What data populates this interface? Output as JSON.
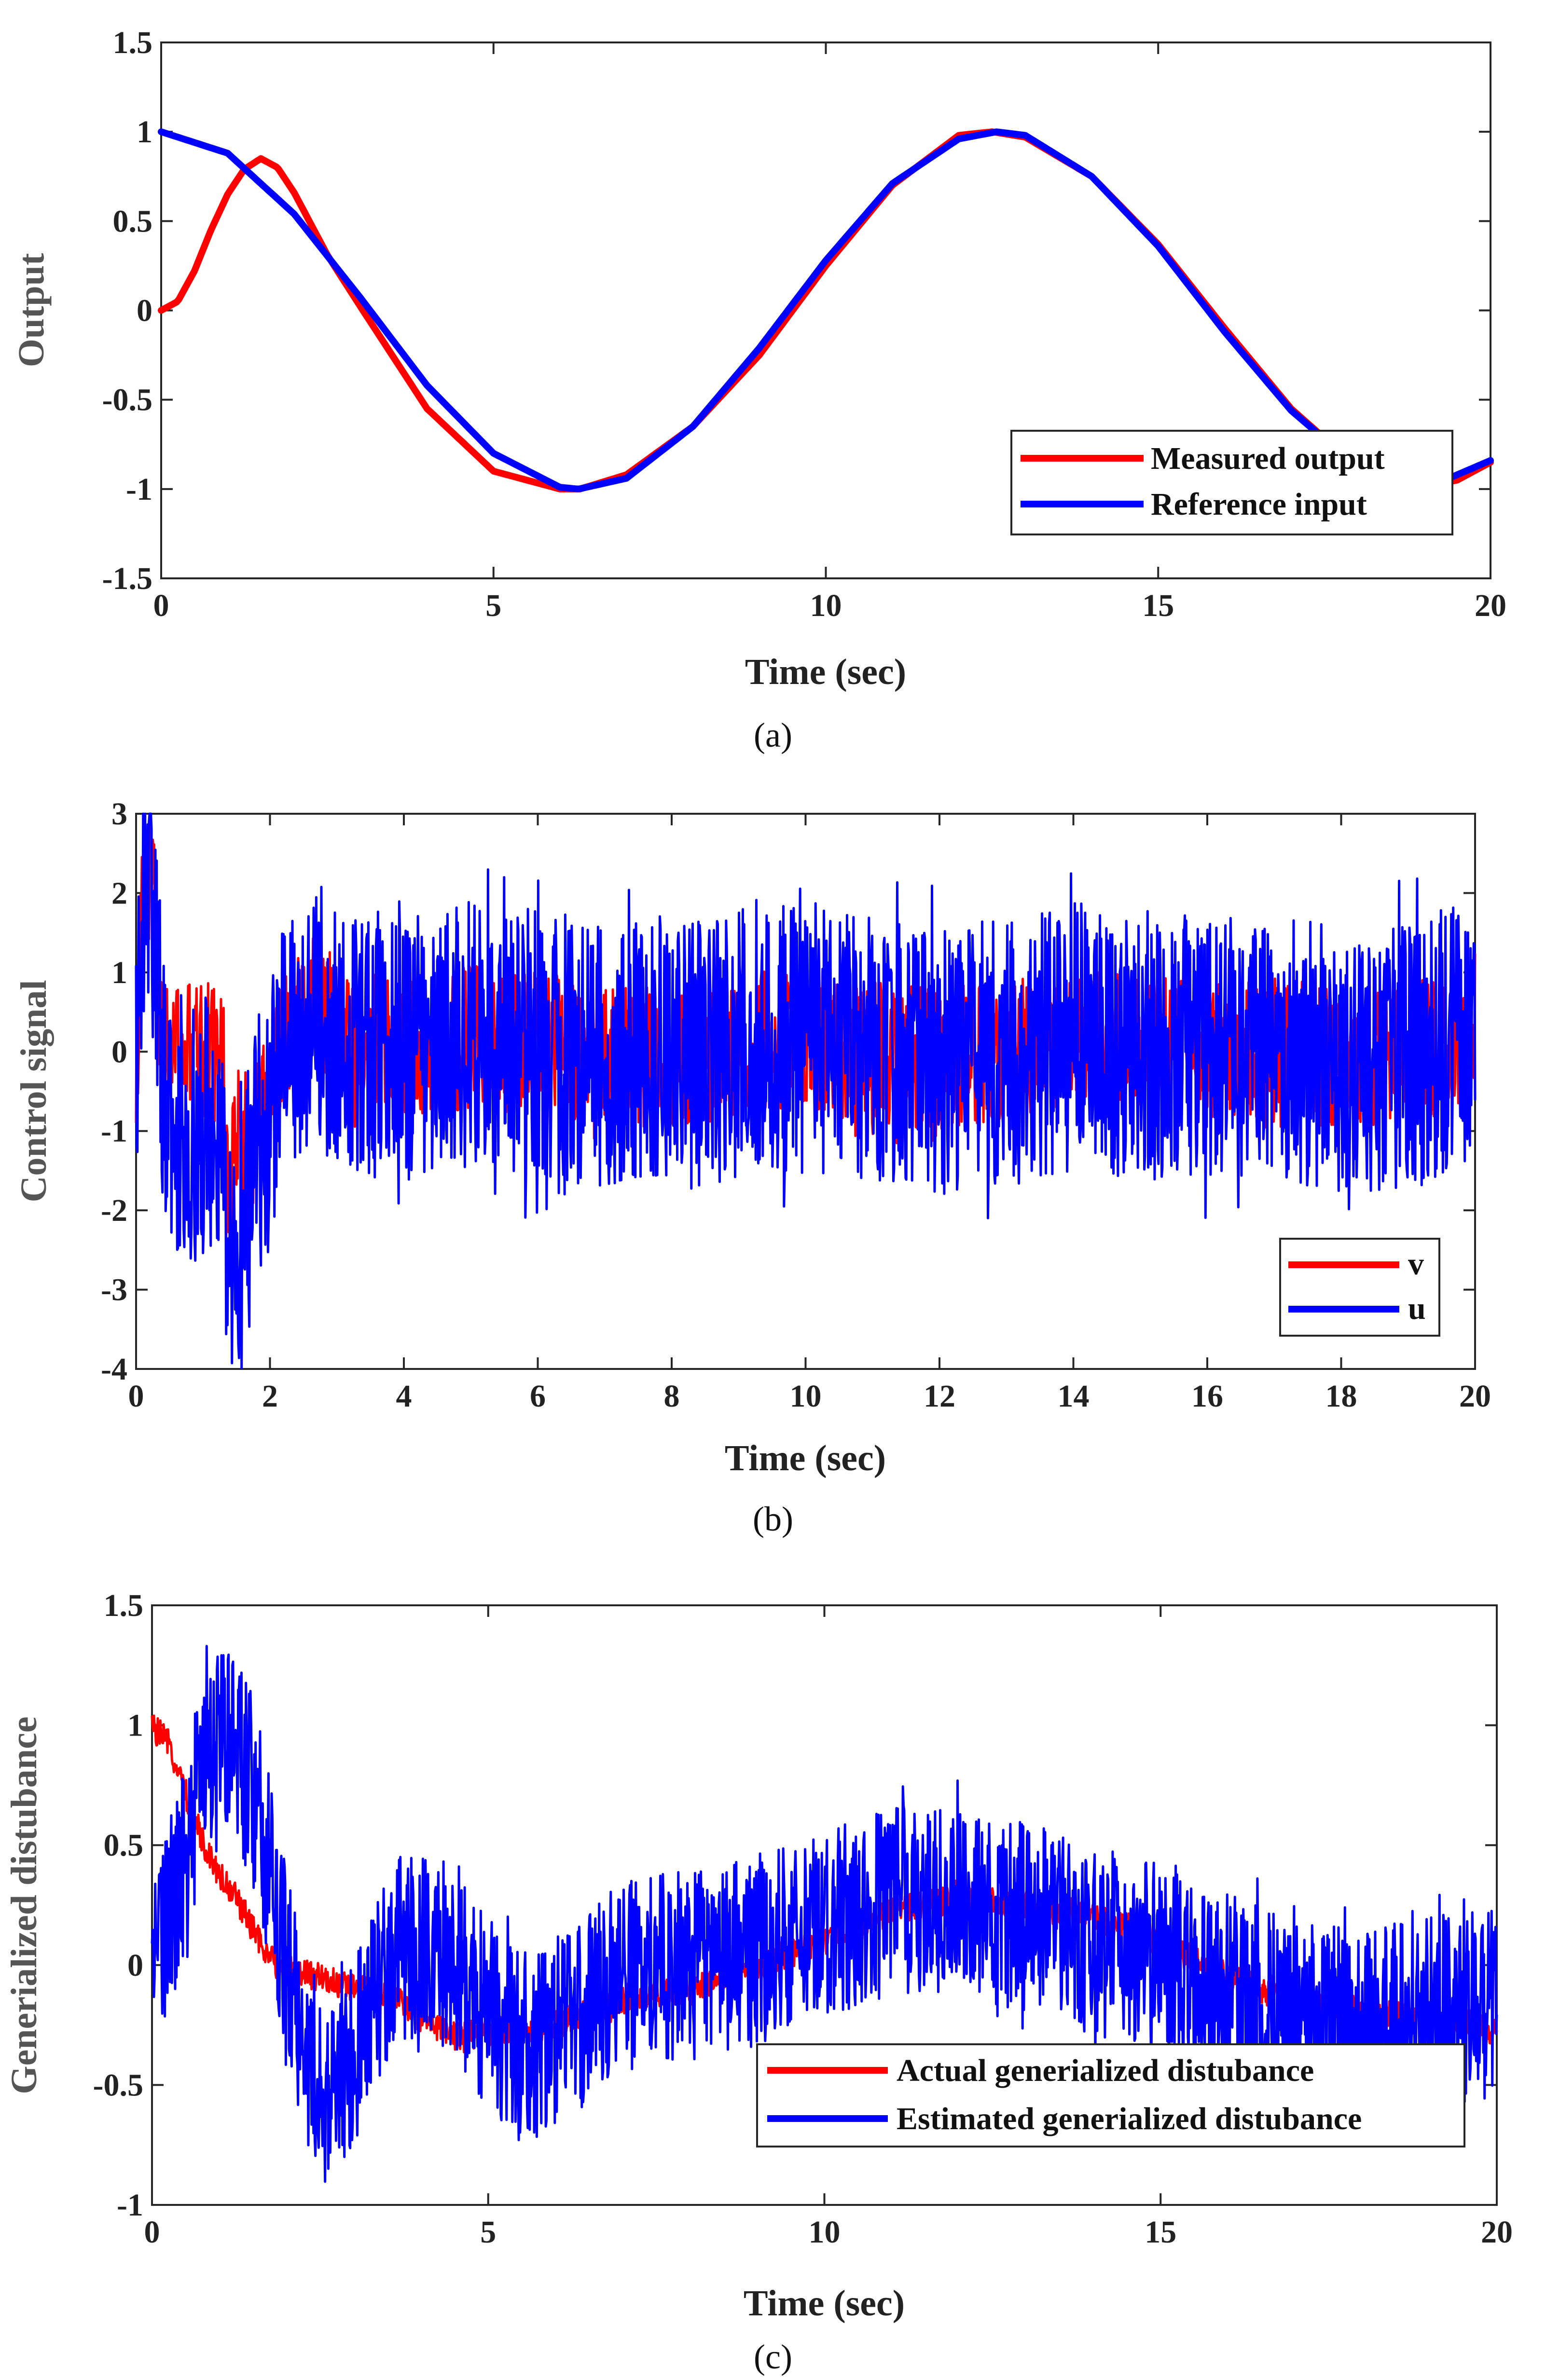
{
  "chart_data": [
    {
      "type": "line",
      "caption": "(a)",
      "xlabel": "Time (sec)",
      "ylabel": "Output",
      "xlim": [
        0,
        20
      ],
      "ylim": [
        -1.5,
        1.5
      ],
      "xticks": [
        "0",
        "5",
        "10",
        "15",
        "20"
      ],
      "yticks": [
        "-1.5",
        "-1",
        "-0.5",
        "0",
        "0.5",
        "1",
        "1.5"
      ],
      "legend_position": "bottom-right",
      "series": [
        {
          "name": "Measured output",
          "color": "#ff0000",
          "x": [
            0,
            0.25,
            0.5,
            0.75,
            1.0,
            1.25,
            1.5,
            1.75,
            2.0,
            2.5,
            3,
            4,
            5,
            6,
            6.3,
            7,
            8,
            9,
            10,
            11,
            12,
            12.5,
            13,
            14,
            15,
            16,
            17,
            18,
            19,
            19.5,
            20
          ],
          "y": [
            0,
            0.05,
            0.22,
            0.45,
            0.65,
            0.79,
            0.85,
            0.8,
            0.66,
            0.31,
            0.02,
            -0.55,
            -0.9,
            -1.0,
            -1.0,
            -0.92,
            -0.65,
            -0.25,
            0.25,
            0.7,
            0.98,
            1.0,
            0.97,
            0.75,
            0.37,
            -0.1,
            -0.55,
            -0.88,
            -0.99,
            -0.95,
            -0.85
          ]
        },
        {
          "name": "Reference input",
          "color": "#0000ff",
          "x": [
            0,
            1,
            2,
            3,
            4,
            5,
            6,
            6.28,
            7,
            8,
            9,
            10,
            11,
            12,
            12.57,
            13,
            14,
            15,
            16,
            17,
            18,
            19,
            20
          ],
          "y": [
            1.0,
            0.88,
            0.54,
            0.07,
            -0.42,
            -0.8,
            -0.99,
            -1.0,
            -0.94,
            -0.65,
            -0.21,
            0.28,
            0.71,
            0.96,
            1.0,
            0.98,
            0.75,
            0.36,
            -0.12,
            -0.56,
            -0.88,
            -1.0,
            -0.84
          ]
        }
      ]
    },
    {
      "type": "line",
      "caption": "(b)",
      "xlabel": "Time (sec)",
      "ylabel": "Control signal",
      "xlim": [
        0,
        20
      ],
      "ylim": [
        -4,
        3
      ],
      "xticks": [
        "0",
        "2",
        "4",
        "6",
        "8",
        "10",
        "12",
        "14",
        "16",
        "18",
        "20"
      ],
      "yticks": [
        "-4",
        "-3",
        "-2",
        "-1",
        "0",
        "1",
        "2",
        "3"
      ],
      "legend_position": "bottom-right",
      "series": [
        {
          "name": "v",
          "color": "#ff0000",
          "x": [
            0,
            0.1,
            0.2,
            0.3,
            0.35,
            0.5,
            0.8,
            1.0,
            1.3,
            1.35,
            1.5,
            1.7,
            2.0,
            2.2,
            2.5,
            2.7,
            3,
            3.5,
            4,
            5,
            6,
            7,
            8,
            9,
            10,
            11,
            12,
            13,
            14,
            15,
            16,
            17,
            18,
            19,
            20
          ],
          "y": [
            0,
            1.9,
            2.0,
            1.9,
            0.05,
            0.0,
            0.0,
            0.0,
            0.0,
            -1.8,
            -1.0,
            -1.2,
            -0.5,
            0.1,
            0.4,
            0.6,
            0.3,
            0.1,
            0.0,
            0.2,
            0.1,
            0.0,
            -0.1,
            0.1,
            0.2,
            0.0,
            -0.1,
            0.0,
            0.2,
            0.1,
            0.0,
            0.1,
            -0.1,
            0.0,
            0.2
          ],
          "noise": 0.9
        },
        {
          "name": "u",
          "color": "#0000ff",
          "x": [
            0,
            0.1,
            0.2,
            0.3,
            0.4,
            0.6,
            0.8,
            1.0,
            1.2,
            1.3,
            1.35,
            1.45,
            1.6,
            1.8,
            2.0,
            2.2,
            2.5,
            2.7,
            3,
            3.5,
            4,
            5,
            6,
            7,
            8,
            9,
            10,
            11,
            12,
            13,
            14,
            15,
            16,
            17,
            18,
            19,
            20
          ],
          "y": [
            0,
            2.2,
            2.0,
            1.5,
            -0.4,
            -0.8,
            -0.9,
            -1.0,
            -1.0,
            -0.8,
            -2.5,
            -3.0,
            -2.3,
            -1.3,
            -0.7,
            0.0,
            0.3,
            0.5,
            0.2,
            0.1,
            0.0,
            0.2,
            0.1,
            0.0,
            -0.1,
            0.1,
            0.2,
            0.0,
            -0.1,
            0.0,
            0.2,
            0.1,
            0.0,
            0.1,
            -0.1,
            0.0,
            0.2
          ],
          "noise": 1.7
        }
      ]
    },
    {
      "type": "line",
      "caption": "(c)",
      "xlabel": "Time (sec)",
      "ylabel": "Generialized distubance",
      "xlim": [
        0,
        20
      ],
      "ylim": [
        -1,
        1.5
      ],
      "xticks": [
        "0",
        "5",
        "10",
        "15",
        "20"
      ],
      "yticks": [
        "-1",
        "-0.5",
        "0",
        "0.5",
        "1",
        "1.5"
      ],
      "legend_position": "bottom-right",
      "series": [
        {
          "name": "Actual generialized distubance",
          "color": "#ff0000",
          "x": [
            0,
            0.25,
            0.5,
            0.75,
            1.0,
            1.25,
            1.5,
            1.75,
            2.0,
            2.5,
            3.0,
            3.5,
            4.0,
            4.5,
            5.0,
            6.0,
            7.0,
            8.0,
            9.0,
            10.0,
            11.0,
            12.0,
            13.0,
            14.0,
            15.0,
            16.0,
            17.0,
            18.0,
            19.0,
            20.0
          ],
          "y": [
            1.0,
            0.92,
            0.72,
            0.52,
            0.38,
            0.28,
            0.15,
            0.02,
            -0.02,
            -0.05,
            -0.1,
            -0.12,
            -0.22,
            -0.3,
            -0.28,
            -0.25,
            -0.15,
            -0.1,
            0.0,
            0.1,
            0.22,
            0.28,
            0.25,
            0.2,
            0.1,
            -0.05,
            -0.15,
            -0.2,
            -0.22,
            -0.28
          ],
          "noise": 0.06
        },
        {
          "name": "Estimated generialized distubance",
          "color": "#0000ff",
          "x": [
            0,
            0.2,
            0.4,
            0.6,
            0.8,
            1.0,
            1.2,
            1.4,
            1.6,
            1.8,
            2.0,
            2.3,
            2.6,
            2.9,
            3.2,
            3.6,
            4.0,
            4.5,
            5.0,
            5.5,
            6.0,
            7.0,
            8.0,
            9.0,
            10.0,
            11.0,
            12.0,
            13.0,
            14.0,
            15.0,
            16.0,
            17.0,
            18.0,
            19.0,
            20.0
          ],
          "y": [
            0.0,
            0.15,
            0.35,
            0.6,
            0.85,
            0.95,
            0.95,
            0.8,
            0.6,
            0.35,
            0.0,
            -0.35,
            -0.55,
            -0.45,
            -0.2,
            0.05,
            0.1,
            0.0,
            -0.2,
            -0.35,
            -0.3,
            -0.05,
            0.0,
            0.05,
            0.15,
            0.28,
            0.28,
            0.2,
            0.1,
            0.05,
            -0.1,
            -0.2,
            -0.25,
            -0.2,
            -0.15
          ],
          "noise": 0.4
        }
      ]
    }
  ]
}
